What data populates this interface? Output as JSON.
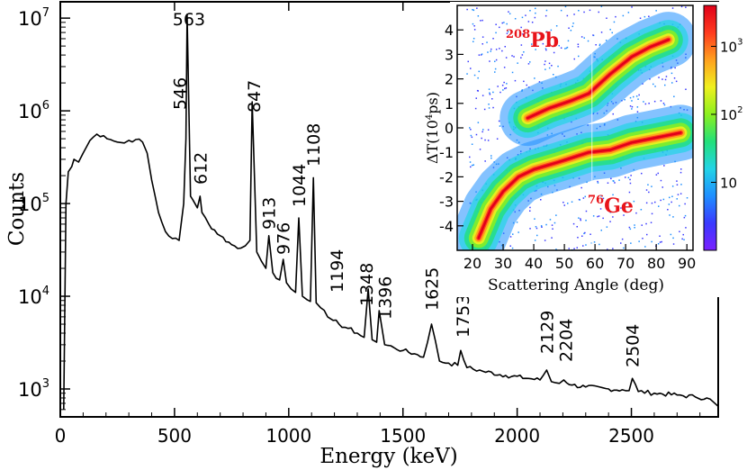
{
  "chart_data": [
    {
      "type": "line",
      "title": "",
      "xlabel": "Energy (keV)",
      "ylabel": "Counts",
      "xlim": [
        0,
        2880
      ],
      "ylim": [
        500,
        15000000
      ],
      "yscale": "log",
      "x_ticks": [
        0,
        500,
        1000,
        1500,
        2000,
        2500
      ],
      "x_tick_labels": [
        "0",
        "500",
        "1000",
        "1500",
        "2000",
        "2500"
      ],
      "y_ticks": [
        {
          "value": 1000,
          "base": "10",
          "exp": "3"
        },
        {
          "value": 10000,
          "base": "10",
          "exp": "4"
        },
        {
          "value": 100000,
          "base": "10",
          "exp": "5"
        },
        {
          "value": 1000000,
          "base": "10",
          "exp": "6"
        },
        {
          "value": 10000000,
          "base": "10",
          "exp": "7"
        }
      ],
      "spectrum": {
        "x": [
          15,
          25,
          35,
          50,
          60,
          80,
          100,
          130,
          160,
          190,
          220,
          250,
          280,
          300,
          330,
          360,
          380,
          400,
          430,
          460,
          490,
          520,
          540,
          550,
          555,
          570,
          580,
          600,
          612,
          620,
          650,
          700,
          750,
          790,
          810,
          830,
          840,
          860,
          880,
          900,
          913,
          930,
          960,
          976,
          990,
          1010,
          1030,
          1044,
          1060,
          1080,
          1095,
          1108,
          1120,
          1140,
          1170,
          1194,
          1220,
          1260,
          1300,
          1330,
          1348,
          1365,
          1385,
          1396,
          1420,
          1460,
          1500,
          1550,
          1590,
          1625,
          1660,
          1700,
          1740,
          1753,
          1780,
          1850,
          1950,
          2050,
          2100,
          2129,
          2150,
          2185,
          2204,
          2240,
          2300,
          2400,
          2460,
          2490,
          2504,
          2530,
          2600,
          2700,
          2780,
          2830,
          2860,
          2880
        ],
        "y": [
          600,
          100000,
          220000,
          250000,
          300000,
          280000,
          350000,
          480000,
          560000,
          540000,
          490000,
          460000,
          450000,
          480000,
          490000,
          460000,
          350000,
          180000,
          80000,
          50000,
          42000,
          40000,
          100000,
          500000,
          11000000,
          120000,
          110000,
          90000,
          120000,
          80000,
          60000,
          45000,
          36000,
          33000,
          35000,
          40000,
          1250000,
          30000,
          24000,
          20000,
          45000,
          18000,
          15000,
          25000,
          14000,
          12000,
          11000,
          70000,
          10000,
          9200,
          8800,
          190000,
          8500,
          7500,
          6000,
          5500,
          5000,
          4500,
          4000,
          3600,
          12000,
          3400,
          3200,
          7000,
          3000,
          2800,
          2600,
          2400,
          2200,
          5000,
          2000,
          1900,
          1800,
          2600,
          1700,
          1550,
          1400,
          1300,
          1250,
          1600,
          1200,
          1150,
          1250,
          1100,
          1050,
          1000,
          980,
          960,
          1300,
          940,
          900,
          860,
          820,
          800,
          720,
          650
        ]
      },
      "annotations": [
        {
          "text": "563",
          "x": 563
        },
        {
          "text": "546",
          "x": 546
        },
        {
          "text": "612",
          "x": 612
        },
        {
          "text": "847",
          "x": 847
        },
        {
          "text": "913",
          "x": 913
        },
        {
          "text": "976",
          "x": 976
        },
        {
          "text": "1044",
          "x": 1044
        },
        {
          "text": "1108",
          "x": 1108
        },
        {
          "text": "1194",
          "x": 1194
        },
        {
          "text": "1348",
          "x": 1348
        },
        {
          "text": "1396",
          "x": 1396
        },
        {
          "text": "1625",
          "x": 1625
        },
        {
          "text": "1753",
          "x": 1753
        },
        {
          "text": "2129",
          "x": 2129
        },
        {
          "text": "2204",
          "x": 2204
        },
        {
          "text": "2504",
          "x": 2504
        }
      ]
    },
    {
      "type": "heatmap",
      "title": "",
      "xlabel": "Scattering Angle (deg)",
      "ylabel_delta": "ΔT",
      "ylabel_main": "(10",
      "ylabel_exp": "4",
      "ylabel_unit": "ps)",
      "xlim": [
        15,
        92
      ],
      "ylim": [
        -5,
        5
      ],
      "x_ticks": [
        20,
        30,
        40,
        50,
        60,
        70,
        80,
        90
      ],
      "y_ticks": [
        -4,
        -3,
        -2,
        -1,
        0,
        1,
        2,
        3,
        4
      ],
      "colorbar": {
        "scale": "log",
        "range": [
          1,
          4000
        ],
        "ticks": [
          {
            "value": 10,
            "label": "10",
            "exp": ""
          },
          {
            "value": 100,
            "label": "10",
            "exp": "2"
          },
          {
            "value": 1000,
            "label": "10",
            "exp": "3"
          }
        ],
        "colors": [
          "#7a1fff",
          "#3a3aff",
          "#1f8fff",
          "#22d4e6",
          "#22e07a",
          "#8cf01e",
          "#f0f01e",
          "#ffa01e",
          "#ff3a1e",
          "#e0001a"
        ]
      },
      "bands": [
        {
          "name": "208Pb",
          "label_mass": "208",
          "label_element": "Pb",
          "points": [
            [
              38,
              0.4
            ],
            [
              45,
              0.8
            ],
            [
              52,
              1.1
            ],
            [
              58,
              1.4
            ],
            [
              65,
              2.2
            ],
            [
              72,
              2.9
            ],
            [
              78,
              3.3
            ],
            [
              84,
              3.6
            ]
          ]
        },
        {
          "name": "76Ge",
          "label_mass": "76",
          "label_element": "Ge",
          "points": [
            [
              22,
              -4.5
            ],
            [
              26,
              -3.3
            ],
            [
              30,
              -2.6
            ],
            [
              35,
              -2.0
            ],
            [
              40,
              -1.7
            ],
            [
              48,
              -1.4
            ],
            [
              58,
              -1.0
            ],
            [
              65,
              -0.9
            ],
            [
              72,
              -0.6
            ],
            [
              80,
              -0.4
            ],
            [
              88,
              -0.2
            ]
          ]
        }
      ]
    }
  ]
}
